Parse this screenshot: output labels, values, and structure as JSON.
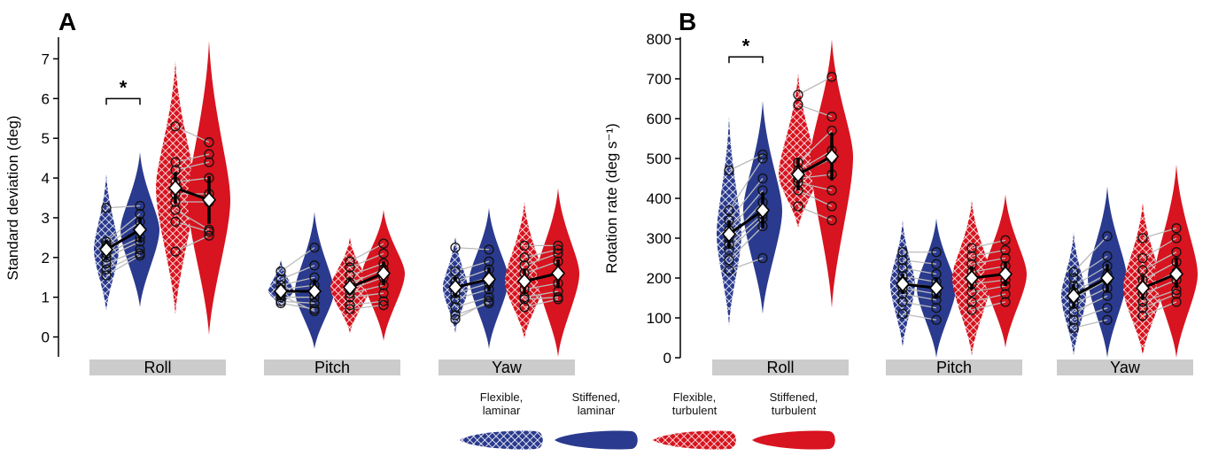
{
  "colors": {
    "blue": "#2a3a8e",
    "red": "#d7141f",
    "axis_bar": "#cccccc",
    "paired_line": "#bbbbbb",
    "mean_line": "#000000"
  },
  "legend": [
    {
      "line1": "Flexible,",
      "line2": "laminar",
      "color": "#2a3a8e",
      "pattern": "hatched"
    },
    {
      "line1": "Stiffened,",
      "line2": "laminar",
      "color": "#2a3a8e",
      "pattern": "solid"
    },
    {
      "line1": "Flexible,",
      "line2": "turbulent",
      "color": "#d7141f",
      "pattern": "hatched"
    },
    {
      "line1": "Stiffened,",
      "line2": "turbulent",
      "color": "#d7141f",
      "pattern": "solid"
    }
  ],
  "chart_data": [
    {
      "type": "violin",
      "panel_label": "A",
      "ylabel": "Standard deviation (deg)",
      "ylim": [
        -0.5,
        7.5
      ],
      "yticks": [
        0,
        1,
        2,
        3,
        4,
        5,
        6,
        7
      ],
      "categories": [
        "Roll",
        "Pitch",
        "Yaw"
      ],
      "conditions": [
        "Flexible, laminar",
        "Stiffened, laminar",
        "Flexible, turbulent",
        "Stiffened, turbulent"
      ],
      "significance": [
        {
          "category": "Roll",
          "between": [
            0,
            1
          ],
          "label": "*",
          "y": 6.0
        }
      ],
      "groups": [
        {
          "category": "Roll",
          "condition": "Flexible, laminar",
          "mean": 2.2,
          "ci": [
            1.95,
            2.45
          ],
          "range": [
            0.65,
            4.1
          ],
          "points": [
            3.25,
            2.4,
            2.3,
            2.25,
            2.1,
            2.0,
            1.85,
            1.55,
            1.7
          ]
        },
        {
          "category": "Roll",
          "condition": "Stiffened, laminar",
          "mean": 2.7,
          "ci": [
            2.4,
            3.0
          ],
          "range": [
            0.75,
            4.65
          ],
          "points": [
            3.3,
            3.1,
            2.9,
            2.7,
            2.5,
            2.4,
            2.2,
            2.05,
            2.1
          ]
        },
        {
          "category": "Roll",
          "condition": "Flexible, turbulent",
          "mean": 3.75,
          "ci": [
            3.35,
            4.15
          ],
          "range": [
            0.55,
            6.95
          ],
          "points": [
            5.3,
            4.4,
            4.2,
            3.9,
            3.6,
            3.4,
            3.2,
            2.9,
            2.15
          ]
        },
        {
          "category": "Roll",
          "condition": "Stiffened, turbulent",
          "mean": 3.45,
          "ci": [
            2.85,
            4.05
          ],
          "range": [
            0.05,
            7.45
          ],
          "points": [
            4.9,
            4.6,
            4.4,
            4.0,
            3.6,
            3.4,
            2.7,
            2.65,
            2.55
          ]
        },
        {
          "category": "Pitch",
          "condition": "Flexible, laminar",
          "mean": 1.15,
          "ci": [
            1.0,
            1.3
          ],
          "range": [
            0.75,
            1.95
          ],
          "points": [
            1.65,
            1.45,
            1.3,
            1.2,
            1.1,
            1.0,
            0.9,
            0.85,
            1.05
          ]
        },
        {
          "category": "Pitch",
          "condition": "Stiffened, laminar",
          "mean": 1.15,
          "ci": [
            0.95,
            1.45
          ],
          "range": [
            -0.3,
            3.15
          ],
          "points": [
            2.25,
            1.8,
            1.5,
            1.3,
            1.15,
            1.0,
            0.85,
            0.7,
            0.65
          ]
        },
        {
          "category": "Pitch",
          "condition": "Flexible, turbulent",
          "mean": 1.25,
          "ci": [
            1.05,
            1.5
          ],
          "range": [
            0.1,
            2.5
          ],
          "points": [
            1.9,
            1.75,
            1.55,
            1.35,
            1.2,
            1.1,
            1.0,
            0.8,
            0.7
          ]
        },
        {
          "category": "Pitch",
          "condition": "Stiffened, turbulent",
          "mean": 1.6,
          "ci": [
            1.3,
            1.9
          ],
          "range": [
            -0.1,
            3.2
          ],
          "points": [
            2.35,
            2.1,
            1.85,
            1.7,
            1.5,
            1.3,
            1.1,
            0.9,
            0.8
          ]
        },
        {
          "category": "Yaw",
          "condition": "Flexible, laminar",
          "mean": 1.25,
          "ci": [
            1.0,
            1.5
          ],
          "range": [
            0.1,
            2.55
          ],
          "points": [
            2.25,
            1.65,
            1.4,
            1.25,
            1.1,
            0.95,
            0.75,
            0.55,
            0.45
          ]
        },
        {
          "category": "Yaw",
          "condition": "Stiffened, laminar",
          "mean": 1.45,
          "ci": [
            1.15,
            1.75
          ],
          "range": [
            -0.3,
            3.25
          ],
          "points": [
            2.2,
            1.9,
            1.7,
            1.5,
            1.35,
            1.2,
            1.0,
            0.85,
            0.9
          ]
        },
        {
          "category": "Yaw",
          "condition": "Flexible, turbulent",
          "mean": 1.4,
          "ci": [
            1.1,
            1.7
          ],
          "range": [
            -0.05,
            3.4
          ],
          "points": [
            2.3,
            2.0,
            1.8,
            1.6,
            1.4,
            1.2,
            1.0,
            0.75,
            0.95
          ]
        },
        {
          "category": "Yaw",
          "condition": "Stiffened, turbulent",
          "mean": 1.6,
          "ci": [
            1.25,
            1.95
          ],
          "range": [
            -0.5,
            3.75
          ],
          "points": [
            2.3,
            2.2,
            2.1,
            1.9,
            1.6,
            1.35,
            1.15,
            0.95,
            1.0
          ]
        }
      ]
    },
    {
      "type": "violin",
      "panel_label": "B",
      "ylabel": "Rotation rate (deg s⁻¹)",
      "ylim": [
        0,
        800
      ],
      "yticks": [
        0,
        100,
        200,
        300,
        400,
        500,
        600,
        700,
        800
      ],
      "categories": [
        "Roll",
        "Pitch",
        "Yaw"
      ],
      "conditions": [
        "Flexible, laminar",
        "Stiffened, laminar",
        "Flexible, turbulent",
        "Stiffened, turbulent"
      ],
      "significance": [
        {
          "category": "Roll",
          "between": [
            0,
            1
          ],
          "label": "*",
          "y": 755
        }
      ],
      "groups": [
        {
          "category": "Roll",
          "condition": "Flexible, laminar",
          "mean": 310,
          "ci": [
            275,
            345
          ],
          "range": [
            80,
            605
          ],
          "points": [
            470,
            370,
            345,
            320,
            300,
            285,
            270,
            245,
            220
          ]
        },
        {
          "category": "Roll",
          "condition": "Stiffened, laminar",
          "mean": 370,
          "ci": [
            325,
            415
          ],
          "range": [
            110,
            645
          ],
          "points": [
            510,
            500,
            450,
            420,
            390,
            360,
            350,
            330,
            250
          ]
        },
        {
          "category": "Roll",
          "condition": "Flexible, turbulent",
          "mean": 460,
          "ci": [
            420,
            500
          ],
          "range": [
            325,
            715
          ],
          "points": [
            660,
            635,
            490,
            470,
            460,
            450,
            440,
            420,
            380
          ]
        },
        {
          "category": "Roll",
          "condition": "Stiffened, turbulent",
          "mean": 505,
          "ci": [
            445,
            565
          ],
          "range": [
            125,
            800
          ],
          "points": [
            705,
            605,
            570,
            520,
            500,
            460,
            420,
            380,
            345
          ]
        },
        {
          "category": "Pitch",
          "condition": "Flexible, laminar",
          "mean": 185,
          "ci": [
            160,
            210
          ],
          "range": [
            25,
            345
          ],
          "points": [
            265,
            245,
            225,
            205,
            190,
            175,
            160,
            140,
            110
          ]
        },
        {
          "category": "Pitch",
          "condition": "Stiffened, laminar",
          "mean": 175,
          "ci": [
            150,
            200
          ],
          "range": [
            0,
            350
          ],
          "points": [
            265,
            235,
            210,
            190,
            175,
            160,
            145,
            125,
            95
          ]
        },
        {
          "category": "Pitch",
          "condition": "Flexible, turbulent",
          "mean": 200,
          "ci": [
            170,
            230
          ],
          "range": [
            5,
            395
          ],
          "points": [
            275,
            255,
            235,
            215,
            200,
            185,
            165,
            140,
            120
          ]
        },
        {
          "category": "Pitch",
          "condition": "Stiffened, turbulent",
          "mean": 210,
          "ci": [
            180,
            240
          ],
          "range": [
            25,
            410
          ],
          "points": [
            295,
            270,
            250,
            230,
            210,
            195,
            180,
            160,
            140
          ]
        },
        {
          "category": "Yaw",
          "condition": "Flexible, laminar",
          "mean": 155,
          "ci": [
            125,
            185
          ],
          "range": [
            5,
            315
          ],
          "points": [
            215,
            200,
            180,
            165,
            150,
            135,
            115,
            95,
            75
          ]
        },
        {
          "category": "Yaw",
          "condition": "Stiffened, laminar",
          "mean": 200,
          "ci": [
            165,
            235
          ],
          "range": [
            0,
            430
          ],
          "points": [
            305,
            255,
            230,
            210,
            195,
            175,
            155,
            125,
            95
          ]
        },
        {
          "category": "Yaw",
          "condition": "Flexible, turbulent",
          "mean": 175,
          "ci": [
            145,
            205
          ],
          "range": [
            5,
            390
          ],
          "points": [
            300,
            250,
            220,
            195,
            175,
            160,
            140,
            125,
            105
          ]
        },
        {
          "category": "Yaw",
          "condition": "Stiffened, turbulent",
          "mean": 210,
          "ci": [
            175,
            250
          ],
          "range": [
            0,
            485
          ],
          "points": [
            325,
            300,
            265,
            240,
            215,
            195,
            170,
            160,
            140
          ]
        }
      ]
    }
  ]
}
